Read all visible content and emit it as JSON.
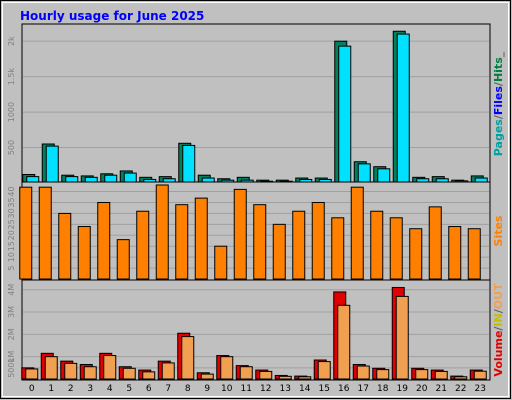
{
  "title": "Hourly usage for June 2025",
  "colors": {
    "background": "#c0c0c0",
    "title": "#0000ff",
    "pages": "#008040",
    "files": "#00e0ff",
    "hits": "#00805c",
    "sites": "#ff8000",
    "kbytes_out": "#f0a050",
    "kbytes_in": "#e00000"
  },
  "chart_data": [
    {
      "type": "bar",
      "panel": "top",
      "categories": [
        "0",
        "1",
        "2",
        "3",
        "4",
        "5",
        "6",
        "7",
        "8",
        "9",
        "10",
        "11",
        "12",
        "13",
        "14",
        "15",
        "16",
        "17",
        "18",
        "19",
        "20",
        "21",
        "22",
        "23"
      ],
      "y_ticks": [
        "500",
        "1000",
        "1.5k",
        "2k"
      ],
      "ylim": [
        0,
        2200
      ],
      "legend": [
        {
          "text": "Pages",
          "color": "#00a0a0"
        },
        {
          "text": "/",
          "color": "#606060"
        },
        {
          "text": "Files",
          "color": "#0000ff"
        },
        {
          "text": "/",
          "color": "#606060"
        },
        {
          "text": "Hits",
          "color": "#008040"
        },
        {
          "text": "_",
          "color": "#606060"
        }
      ],
      "series": [
        {
          "name": "Hits",
          "values": [
            120,
            550,
            110,
            100,
            130,
            170,
            80,
            90,
            560,
            110,
            60,
            80,
            40,
            40,
            70,
            70,
            2000,
            300,
            230,
            2140,
            80,
            90,
            40,
            100
          ]
        },
        {
          "name": "Files",
          "values": [
            90,
            520,
            90,
            80,
            110,
            140,
            50,
            60,
            530,
            70,
            40,
            40,
            25,
            25,
            50,
            50,
            1930,
            270,
            200,
            2100,
            60,
            60,
            30,
            70
          ]
        }
      ]
    },
    {
      "type": "bar",
      "panel": "middle",
      "categories": [
        "0",
        "1",
        "2",
        "3",
        "4",
        "5",
        "6",
        "7",
        "8",
        "9",
        "10",
        "11",
        "12",
        "13",
        "14",
        "15",
        "16",
        "17",
        "18",
        "19",
        "20",
        "21",
        "22",
        "23"
      ],
      "y_ticks": [
        "5",
        "10",
        "15",
        "20",
        "25",
        "30",
        "35",
        "40"
      ],
      "ylim": [
        0,
        43
      ],
      "legend": [
        {
          "text": "Sites",
          "color": "#ff8000"
        }
      ],
      "series": [
        {
          "name": "Sites",
          "values": [
            42,
            42,
            30,
            24,
            35,
            18,
            31,
            43,
            34,
            37,
            15,
            41,
            34,
            25,
            31,
            35,
            28,
            42,
            31,
            28,
            23,
            33,
            24,
            23
          ]
        }
      ]
    },
    {
      "type": "bar",
      "panel": "bottom",
      "categories": [
        "0",
        "1",
        "2",
        "3",
        "4",
        "5",
        "6",
        "7",
        "8",
        "9",
        "10",
        "11",
        "12",
        "13",
        "14",
        "15",
        "16",
        "17",
        "18",
        "19",
        "20",
        "21",
        "22",
        "23"
      ],
      "y_ticks": [
        "500k",
        "1M",
        "2M",
        "3M",
        "4M"
      ],
      "ylim": [
        0,
        4300
      ],
      "legend": [
        {
          "text": "Volume",
          "color": "#e00000"
        },
        {
          "text": "/",
          "color": "#606060"
        },
        {
          "text": "IN",
          "color": "#c0c000"
        },
        {
          "text": "/",
          "color": "#606060"
        },
        {
          "text": "OUT",
          "color": "#f0a050"
        }
      ],
      "series": [
        {
          "name": "Volume",
          "values": [
            500,
            1150,
            800,
            650,
            1150,
            550,
            400,
            800,
            2050,
            280,
            1050,
            600,
            400,
            160,
            130,
            850,
            3900,
            650,
            480,
            4100,
            480,
            400,
            130,
            400
          ]
        },
        {
          "name": "OUT",
          "values": [
            450,
            1000,
            700,
            550,
            1050,
            480,
            320,
            720,
            1900,
            220,
            1000,
            550,
            340,
            120,
            100,
            780,
            3300,
            580,
            420,
            3700,
            420,
            340,
            100,
            350
          ]
        }
      ]
    }
  ]
}
